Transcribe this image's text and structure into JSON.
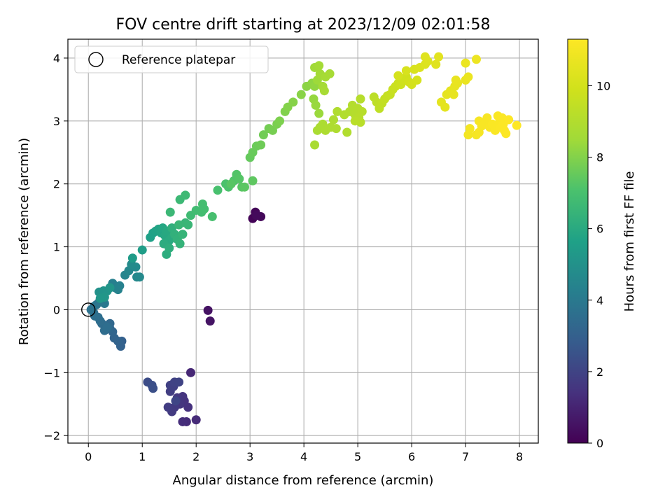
{
  "chart_data": {
    "type": "scatter",
    "title": "FOV centre drift starting at 2023/12/09 02:01:58",
    "xlabel": "Angular distance from reference (arcmin)",
    "ylabel": "Rotation from reference (arcmin)",
    "xlim": [
      -0.38,
      8.35
    ],
    "ylim": [
      -2.12,
      4.3
    ],
    "x_ticks": [
      0,
      1,
      2,
      3,
      4,
      5,
      6,
      7,
      8
    ],
    "y_ticks": [
      -2,
      -1,
      0,
      1,
      2,
      3,
      4
    ],
    "grid": true,
    "legend": {
      "position": "top-left",
      "entries": [
        "Reference platepar"
      ]
    },
    "reference_point": {
      "x": 0,
      "y": 0,
      "label": "Reference platepar"
    },
    "colorbar": {
      "label": "Hours from first FF file",
      "min": 0,
      "max": 11.3,
      "ticks": [
        0,
        2,
        4,
        6,
        8,
        10
      ],
      "colormap": "viridis"
    },
    "series": [
      {
        "x": 3.05,
        "y": 1.45,
        "hours": 0.1
      },
      {
        "x": 3.1,
        "y": 1.55,
        "hours": 0.15
      },
      {
        "x": 3.2,
        "y": 1.48,
        "hours": 0.2
      },
      {
        "x": 3.12,
        "y": 1.5,
        "hours": 0.25
      },
      {
        "x": 2.22,
        "y": -0.01,
        "hours": 0.5
      },
      {
        "x": 2.26,
        "y": -0.18,
        "hours": 0.55
      },
      {
        "x": 1.9,
        "y": -1.0,
        "hours": 1.1
      },
      {
        "x": 2.0,
        "y": -1.75,
        "hours": 1.2
      },
      {
        "x": 1.82,
        "y": -1.78,
        "hours": 1.25
      },
      {
        "x": 1.75,
        "y": -1.78,
        "hours": 1.3
      },
      {
        "x": 1.85,
        "y": -1.55,
        "hours": 1.4
      },
      {
        "x": 1.78,
        "y": -1.45,
        "hours": 1.45
      },
      {
        "x": 1.75,
        "y": -1.38,
        "hours": 1.5
      },
      {
        "x": 1.7,
        "y": -1.5,
        "hours": 1.55
      },
      {
        "x": 1.65,
        "y": -1.4,
        "hours": 1.6
      },
      {
        "x": 1.6,
        "y": -1.55,
        "hours": 1.65
      },
      {
        "x": 1.55,
        "y": -1.62,
        "hours": 1.7
      },
      {
        "x": 1.48,
        "y": -1.55,
        "hours": 1.75
      },
      {
        "x": 1.52,
        "y": -1.3,
        "hours": 1.8
      },
      {
        "x": 1.58,
        "y": -1.22,
        "hours": 1.85
      },
      {
        "x": 1.52,
        "y": -1.2,
        "hours": 1.9
      },
      {
        "x": 1.6,
        "y": -1.15,
        "hours": 1.95
      },
      {
        "x": 1.68,
        "y": -1.15,
        "hours": 2.0
      },
      {
        "x": 1.62,
        "y": -1.45,
        "hours": 2.05
      },
      {
        "x": 1.1,
        "y": -1.15,
        "hours": 2.3
      },
      {
        "x": 1.18,
        "y": -1.2,
        "hours": 2.35
      },
      {
        "x": 1.2,
        "y": -1.25,
        "hours": 2.4
      },
      {
        "x": 0.62,
        "y": -0.5,
        "hours": 3.0
      },
      {
        "x": 0.6,
        "y": -0.58,
        "hours": 3.05
      },
      {
        "x": 0.55,
        "y": -0.5,
        "hours": 3.1
      },
      {
        "x": 0.48,
        "y": -0.45,
        "hours": 3.15
      },
      {
        "x": 0.45,
        "y": -0.35,
        "hours": 3.2
      },
      {
        "x": 0.4,
        "y": -0.3,
        "hours": 3.25
      },
      {
        "x": 0.4,
        "y": -0.22,
        "hours": 3.3
      },
      {
        "x": 0.33,
        "y": -0.3,
        "hours": 3.35
      },
      {
        "x": 0.3,
        "y": -0.25,
        "hours": 3.4
      },
      {
        "x": 0.25,
        "y": -0.22,
        "hours": 3.45
      },
      {
        "x": 0.22,
        "y": -0.18,
        "hours": 3.5
      },
      {
        "x": 0.18,
        "y": -0.12,
        "hours": 3.55
      },
      {
        "x": 0.12,
        "y": -0.1,
        "hours": 3.6
      },
      {
        "x": 0.1,
        "y": -0.05,
        "hours": 3.65
      },
      {
        "x": 0.05,
        "y": 0.0,
        "hours": 3.7
      },
      {
        "x": 0.3,
        "y": -0.33,
        "hours": 3.5
      },
      {
        "x": 0.35,
        "y": -0.28,
        "hours": 3.55
      },
      {
        "x": 0.1,
        "y": 0.05,
        "hours": 3.8
      },
      {
        "x": 0.15,
        "y": 0.08,
        "hours": 3.85
      },
      {
        "x": 0.2,
        "y": 0.12,
        "hours": 3.9
      },
      {
        "x": 0.3,
        "y": 0.1,
        "hours": 3.95
      },
      {
        "x": 0.5,
        "y": 0.35,
        "hours": 4.2
      },
      {
        "x": 0.45,
        "y": 0.42,
        "hours": 4.25
      },
      {
        "x": 0.58,
        "y": 0.38,
        "hours": 4.3
      },
      {
        "x": 0.55,
        "y": 0.32,
        "hours": 4.35
      },
      {
        "x": 0.68,
        "y": 0.55,
        "hours": 4.5
      },
      {
        "x": 0.75,
        "y": 0.62,
        "hours": 4.55
      },
      {
        "x": 0.9,
        "y": 0.52,
        "hours": 4.6
      },
      {
        "x": 0.95,
        "y": 0.52,
        "hours": 4.65
      },
      {
        "x": 0.88,
        "y": 0.68,
        "hours": 4.7
      },
      {
        "x": 0.8,
        "y": 0.72,
        "hours": 4.75
      },
      {
        "x": 0.2,
        "y": 0.28,
        "hours": 5.0
      },
      {
        "x": 0.28,
        "y": 0.3,
        "hours": 5.05
      },
      {
        "x": 0.35,
        "y": 0.3,
        "hours": 5.1
      },
      {
        "x": 0.4,
        "y": 0.35,
        "hours": 5.15
      },
      {
        "x": 0.3,
        "y": 0.2,
        "hours": 5.2
      },
      {
        "x": 0.22,
        "y": 0.18,
        "hours": 5.25
      },
      {
        "x": 0.82,
        "y": 0.82,
        "hours": 5.4
      },
      {
        "x": 1.0,
        "y": 0.95,
        "hours": 5.5
      },
      {
        "x": 1.15,
        "y": 1.15,
        "hours": 5.6
      },
      {
        "x": 1.2,
        "y": 1.22,
        "hours": 5.65
      },
      {
        "x": 1.25,
        "y": 1.25,
        "hours": 5.7
      },
      {
        "x": 1.3,
        "y": 1.28,
        "hours": 5.75
      },
      {
        "x": 1.35,
        "y": 1.22,
        "hours": 5.8
      },
      {
        "x": 1.38,
        "y": 1.3,
        "hours": 5.85
      },
      {
        "x": 1.42,
        "y": 1.18,
        "hours": 5.9
      },
      {
        "x": 1.45,
        "y": 1.25,
        "hours": 5.95
      },
      {
        "x": 1.5,
        "y": 1.1,
        "hours": 6.0
      },
      {
        "x": 1.55,
        "y": 1.15,
        "hours": 6.05
      },
      {
        "x": 1.4,
        "y": 1.05,
        "hours": 6.1
      },
      {
        "x": 1.45,
        "y": 0.88,
        "hours": 6.15
      },
      {
        "x": 1.5,
        "y": 0.98,
        "hours": 6.2
      },
      {
        "x": 1.55,
        "y": 1.3,
        "hours": 6.25
      },
      {
        "x": 1.6,
        "y": 1.2,
        "hours": 6.3
      },
      {
        "x": 1.65,
        "y": 1.12,
        "hours": 6.35
      },
      {
        "x": 1.7,
        "y": 1.05,
        "hours": 6.4
      },
      {
        "x": 1.75,
        "y": 1.2,
        "hours": 6.45
      },
      {
        "x": 1.8,
        "y": 1.38,
        "hours": 6.5
      },
      {
        "x": 1.85,
        "y": 1.35,
        "hours": 6.55
      },
      {
        "x": 1.68,
        "y": 1.35,
        "hours": 6.55
      },
      {
        "x": 1.52,
        "y": 1.55,
        "hours": 6.6
      },
      {
        "x": 1.7,
        "y": 1.75,
        "hours": 6.65
      },
      {
        "x": 1.8,
        "y": 1.82,
        "hours": 6.7
      },
      {
        "x": 1.9,
        "y": 1.5,
        "hours": 6.75
      },
      {
        "x": 2.0,
        "y": 1.58,
        "hours": 6.8
      },
      {
        "x": 2.1,
        "y": 1.55,
        "hours": 6.85
      },
      {
        "x": 2.12,
        "y": 1.68,
        "hours": 6.9
      },
      {
        "x": 2.15,
        "y": 1.6,
        "hours": 6.9
      },
      {
        "x": 2.3,
        "y": 1.48,
        "hours": 6.95
      },
      {
        "x": 2.4,
        "y": 1.9,
        "hours": 7.0
      },
      {
        "x": 2.55,
        "y": 2.0,
        "hours": 7.05
      },
      {
        "x": 2.6,
        "y": 1.95,
        "hours": 7.1
      },
      {
        "x": 2.7,
        "y": 2.05,
        "hours": 7.15
      },
      {
        "x": 2.75,
        "y": 2.15,
        "hours": 7.2
      },
      {
        "x": 2.8,
        "y": 2.08,
        "hours": 7.25
      },
      {
        "x": 2.85,
        "y": 1.95,
        "hours": 7.3
      },
      {
        "x": 2.9,
        "y": 1.95,
        "hours": 7.35
      },
      {
        "x": 2.65,
        "y": 2.0,
        "hours": 7.3
      },
      {
        "x": 3.05,
        "y": 2.05,
        "hours": 7.4
      },
      {
        "x": 3.0,
        "y": 2.42,
        "hours": 7.5
      },
      {
        "x": 3.05,
        "y": 2.5,
        "hours": 7.55
      },
      {
        "x": 3.12,
        "y": 2.6,
        "hours": 7.6
      },
      {
        "x": 3.2,
        "y": 2.62,
        "hours": 7.65
      },
      {
        "x": 3.25,
        "y": 2.78,
        "hours": 7.7
      },
      {
        "x": 3.35,
        "y": 2.88,
        "hours": 7.75
      },
      {
        "x": 3.42,
        "y": 2.85,
        "hours": 7.8
      },
      {
        "x": 3.5,
        "y": 2.95,
        "hours": 7.85
      },
      {
        "x": 3.55,
        "y": 3.0,
        "hours": 7.9
      },
      {
        "x": 3.65,
        "y": 3.15,
        "hours": 7.95
      },
      {
        "x": 3.7,
        "y": 3.22,
        "hours": 8.0
      },
      {
        "x": 3.8,
        "y": 3.3,
        "hours": 8.05
      },
      {
        "x": 3.95,
        "y": 3.42,
        "hours": 8.1
      },
      {
        "x": 4.05,
        "y": 3.55,
        "hours": 8.15
      },
      {
        "x": 4.15,
        "y": 3.6,
        "hours": 8.2
      },
      {
        "x": 4.2,
        "y": 3.55,
        "hours": 8.25
      },
      {
        "x": 4.18,
        "y": 3.35,
        "hours": 8.3
      },
      {
        "x": 4.22,
        "y": 3.25,
        "hours": 8.35
      },
      {
        "x": 4.28,
        "y": 3.12,
        "hours": 8.4
      },
      {
        "x": 4.25,
        "y": 3.65,
        "hours": 8.45
      },
      {
        "x": 4.2,
        "y": 3.85,
        "hours": 8.5
      },
      {
        "x": 4.3,
        "y": 3.75,
        "hours": 8.55
      },
      {
        "x": 4.28,
        "y": 3.88,
        "hours": 8.6
      },
      {
        "x": 4.35,
        "y": 3.55,
        "hours": 8.62
      },
      {
        "x": 4.4,
        "y": 3.7,
        "hours": 8.65
      },
      {
        "x": 4.48,
        "y": 3.75,
        "hours": 8.68
      },
      {
        "x": 4.38,
        "y": 3.48,
        "hours": 8.7
      },
      {
        "x": 4.2,
        "y": 2.62,
        "hours": 8.75
      },
      {
        "x": 4.25,
        "y": 2.85,
        "hours": 8.78
      },
      {
        "x": 4.3,
        "y": 2.9,
        "hours": 8.8
      },
      {
        "x": 4.35,
        "y": 2.95,
        "hours": 8.82
      },
      {
        "x": 4.4,
        "y": 2.85,
        "hours": 8.85
      },
      {
        "x": 4.5,
        "y": 2.9,
        "hours": 8.88
      },
      {
        "x": 4.55,
        "y": 3.02,
        "hours": 8.9
      },
      {
        "x": 4.6,
        "y": 2.88,
        "hours": 8.92
      },
      {
        "x": 4.62,
        "y": 3.15,
        "hours": 8.95
      },
      {
        "x": 4.8,
        "y": 2.82,
        "hours": 8.98
      },
      {
        "x": 4.75,
        "y": 3.1,
        "hours": 9.0
      },
      {
        "x": 4.85,
        "y": 3.15,
        "hours": 9.02
      },
      {
        "x": 4.9,
        "y": 3.25,
        "hours": 9.05
      },
      {
        "x": 4.95,
        "y": 3.1,
        "hours": 9.08
      },
      {
        "x": 5.0,
        "y": 3.2,
        "hours": 9.1
      },
      {
        "x": 5.05,
        "y": 3.35,
        "hours": 9.12
      },
      {
        "x": 5.08,
        "y": 3.15,
        "hours": 9.15
      },
      {
        "x": 5.02,
        "y": 3.05,
        "hours": 9.18
      },
      {
        "x": 5.05,
        "y": 2.98,
        "hours": 9.2
      },
      {
        "x": 4.95,
        "y": 3.0,
        "hours": 9.2
      },
      {
        "x": 5.3,
        "y": 3.38,
        "hours": 9.3
      },
      {
        "x": 5.35,
        "y": 3.3,
        "hours": 9.35
      },
      {
        "x": 5.4,
        "y": 3.2,
        "hours": 9.4
      },
      {
        "x": 5.45,
        "y": 3.28,
        "hours": 9.45
      },
      {
        "x": 5.5,
        "y": 3.35,
        "hours": 9.5
      },
      {
        "x": 5.55,
        "y": 3.4,
        "hours": 9.55
      },
      {
        "x": 5.6,
        "y": 3.42,
        "hours": 9.6
      },
      {
        "x": 5.65,
        "y": 3.5,
        "hours": 9.65
      },
      {
        "x": 5.7,
        "y": 3.55,
        "hours": 9.7
      },
      {
        "x": 5.75,
        "y": 3.6,
        "hours": 9.75
      },
      {
        "x": 5.8,
        "y": 3.58,
        "hours": 9.8
      },
      {
        "x": 5.85,
        "y": 3.65,
        "hours": 9.85
      },
      {
        "x": 5.9,
        "y": 3.7,
        "hours": 9.9
      },
      {
        "x": 5.95,
        "y": 3.62,
        "hours": 9.95
      },
      {
        "x": 6.0,
        "y": 3.58,
        "hours": 10.0
      },
      {
        "x": 6.1,
        "y": 3.65,
        "hours": 10.05
      },
      {
        "x": 5.75,
        "y": 3.72,
        "hours": 10.05
      },
      {
        "x": 5.9,
        "y": 3.8,
        "hours": 10.1
      },
      {
        "x": 6.05,
        "y": 3.82,
        "hours": 10.15
      },
      {
        "x": 6.15,
        "y": 3.85,
        "hours": 10.2
      },
      {
        "x": 6.25,
        "y": 3.9,
        "hours": 10.25
      },
      {
        "x": 6.3,
        "y": 3.95,
        "hours": 10.3
      },
      {
        "x": 6.25,
        "y": 4.02,
        "hours": 10.35
      },
      {
        "x": 6.45,
        "y": 3.9,
        "hours": 10.4
      },
      {
        "x": 6.5,
        "y": 4.02,
        "hours": 10.45
      },
      {
        "x": 6.55,
        "y": 3.3,
        "hours": 10.5
      },
      {
        "x": 6.62,
        "y": 3.22,
        "hours": 10.52
      },
      {
        "x": 6.65,
        "y": 3.42,
        "hours": 10.55
      },
      {
        "x": 6.72,
        "y": 3.48,
        "hours": 10.58
      },
      {
        "x": 6.78,
        "y": 3.42,
        "hours": 10.6
      },
      {
        "x": 6.8,
        "y": 3.55,
        "hours": 10.62
      },
      {
        "x": 6.85,
        "y": 3.6,
        "hours": 10.65
      },
      {
        "x": 6.82,
        "y": 3.65,
        "hours": 10.68
      },
      {
        "x": 7.0,
        "y": 3.65,
        "hours": 10.7
      },
      {
        "x": 7.05,
        "y": 3.7,
        "hours": 10.72
      },
      {
        "x": 7.0,
        "y": 3.92,
        "hours": 10.75
      },
      {
        "x": 7.2,
        "y": 3.98,
        "hours": 10.8
      },
      {
        "x": 7.05,
        "y": 2.78,
        "hours": 11.0
      },
      {
        "x": 7.08,
        "y": 2.88,
        "hours": 11.02
      },
      {
        "x": 7.2,
        "y": 2.78,
        "hours": 11.05
      },
      {
        "x": 7.25,
        "y": 2.82,
        "hours": 11.08
      },
      {
        "x": 7.3,
        "y": 2.92,
        "hours": 11.1
      },
      {
        "x": 7.25,
        "y": 3.0,
        "hours": 11.12
      },
      {
        "x": 7.35,
        "y": 2.95,
        "hours": 11.15
      },
      {
        "x": 7.4,
        "y": 3.05,
        "hours": 11.15
      },
      {
        "x": 7.45,
        "y": 2.9,
        "hours": 11.18
      },
      {
        "x": 7.5,
        "y": 2.95,
        "hours": 11.2
      },
      {
        "x": 7.55,
        "y": 2.85,
        "hours": 11.2
      },
      {
        "x": 7.6,
        "y": 2.95,
        "hours": 11.22
      },
      {
        "x": 7.6,
        "y": 3.08,
        "hours": 11.22
      },
      {
        "x": 7.65,
        "y": 2.9,
        "hours": 11.24
      },
      {
        "x": 7.68,
        "y": 3.05,
        "hours": 11.25
      },
      {
        "x": 7.7,
        "y": 2.95,
        "hours": 11.26
      },
      {
        "x": 7.72,
        "y": 2.85,
        "hours": 11.27
      },
      {
        "x": 7.75,
        "y": 2.8,
        "hours": 11.28
      },
      {
        "x": 7.8,
        "y": 3.02,
        "hours": 11.29
      },
      {
        "x": 7.95,
        "y": 2.93,
        "hours": 11.3
      }
    ]
  }
}
